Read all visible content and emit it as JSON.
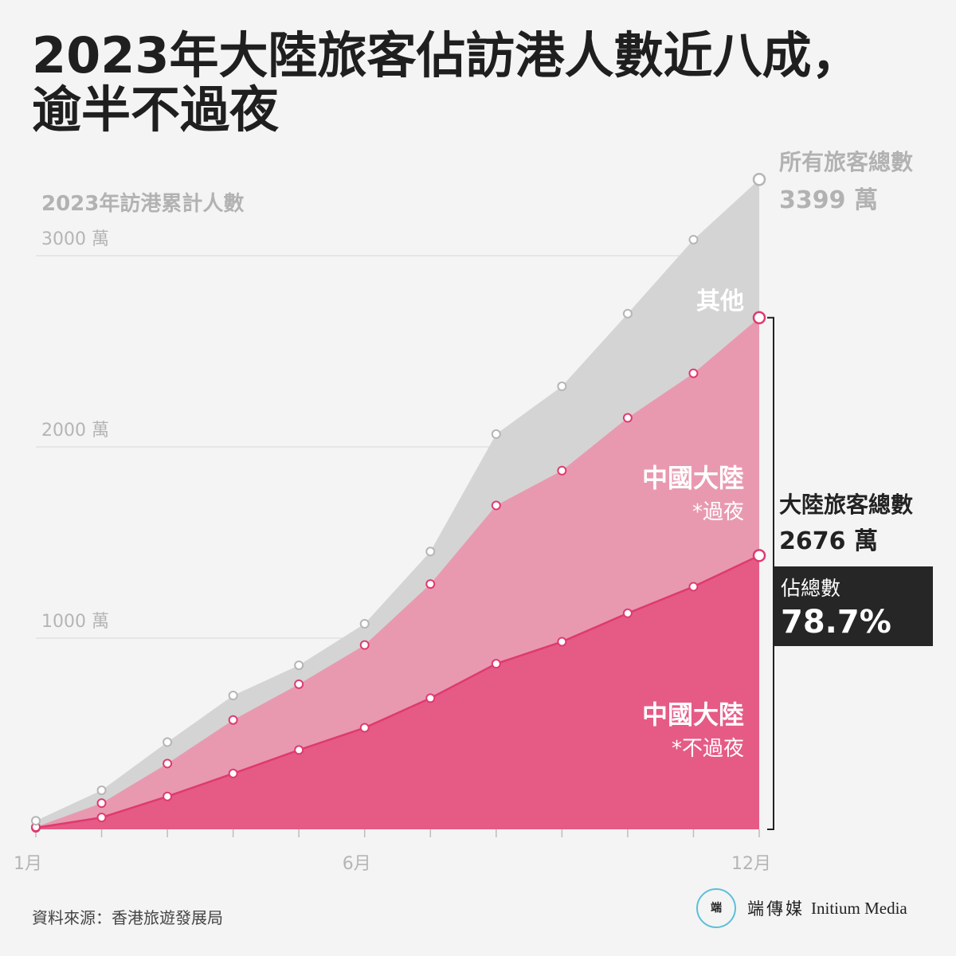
{
  "title": {
    "line1": "2023年大陸旅客佔訪港人數近八成，",
    "line2": "逾半不過夜"
  },
  "subtitle": "2023年訪港累計人數",
  "labels": {
    "other": "其他",
    "mainland": "中國大陸",
    "overnight": "*過夜",
    "same_day": "*不過夜"
  },
  "totals": {
    "all_label": "所有旅客總數",
    "all_value": "3399 萬",
    "mainland_label": "大陸旅客總數",
    "mainland_value": "2676 萬",
    "share_label": "佔總數",
    "share_value": "78.7%"
  },
  "source": "資料來源：香港旅遊發展局",
  "logo": {
    "mark": "端",
    "chinese": "端傳媒",
    "english": "Initium Media"
  },
  "colors": {
    "other": "#d4d4d4",
    "overnight": "#e899b0",
    "same_day": "#e55b85",
    "same_day_line": "#df3a70",
    "grid": "#e2e2e2",
    "axis_text": "#b5b5b5"
  },
  "chart_data": {
    "type": "area",
    "stacked": true,
    "title": "2023年訪港累計人數",
    "x": [
      1,
      2,
      3,
      4,
      5,
      6,
      7,
      8,
      9,
      10,
      11,
      12
    ],
    "x_tick_labels": [
      {
        "x": 1,
        "label": "1月"
      },
      {
        "x": 6,
        "label": "6月"
      },
      {
        "x": 12,
        "label": "12月"
      }
    ],
    "y_unit": "萬",
    "y_ticks": [
      1000,
      2000,
      3000
    ],
    "y_tick_labels": [
      "1000 萬",
      "2000 萬",
      "3000 萬"
    ],
    "ylim": [
      0,
      3400
    ],
    "grid": true,
    "series": [
      {
        "name": "中國大陸 *不過夜",
        "key": "same_day",
        "values": [
          8,
          62,
          172,
          292,
          415,
          531,
          686,
          866,
          981,
          1130,
          1269,
          1432
        ]
      },
      {
        "name": "中國大陸 *過夜",
        "key": "overnight",
        "values": [
          4,
          75,
          172,
          280,
          344,
          433,
          597,
          828,
          895,
          1022,
          1116,
          1244
        ]
      },
      {
        "name": "其他",
        "key": "other",
        "values": [
          33,
          67,
          112,
          128,
          99,
          111,
          170,
          373,
          441,
          545,
          699,
          723
        ]
      }
    ],
    "cumulative_totals": [
      45,
      204,
      456,
      700,
      858,
      1075,
      1453,
      2067,
      2317,
      2697,
      3084,
      3399
    ]
  }
}
